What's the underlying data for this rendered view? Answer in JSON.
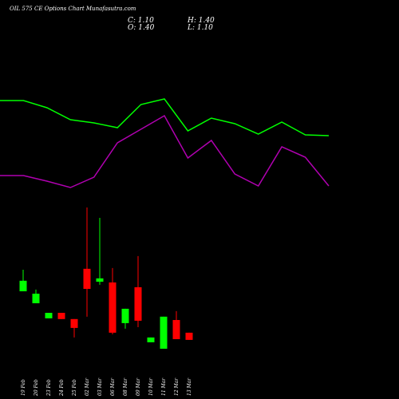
{
  "chart_data": [
    {
      "type": "line",
      "ylim": [
        0,
        500
      ],
      "series": [
        {
          "color": "#00ff00",
          "values": [
            374,
            374,
            365,
            350,
            346,
            340,
            369,
            376,
            336,
            352,
            345,
            332,
            347,
            331,
            330
          ]
        },
        {
          "color": "#b000b0",
          "values": [
            280,
            280,
            273,
            265,
            278,
            321,
            338,
            355,
            302,
            324,
            282,
            267,
            316,
            303,
            267
          ]
        }
      ]
    },
    {
      "type": "candlestick",
      "title": "OIL 575 CE Options Chart Munafasutra.com",
      "ohlc_labels": [
        "C: 1.10",
        "O: 1.40",
        "H: 1.40",
        "L: 1.10"
      ],
      "categories": [
        "19 Feb",
        "20 Feb",
        "23 Feb",
        "24 Feb",
        "25 Feb",
        "02 Mar",
        "03 Mar",
        "06 Mar",
        "08 Mar",
        "09 Mar",
        "10 Mar",
        "11 Mar",
        "12 Mar",
        "13 Mar"
      ],
      "open": [
        3.13,
        2.63,
        2.0,
        2.23,
        1.97,
        4.07,
        3.53,
        3.5,
        1.8,
        3.3,
        1.0,
        0.73,
        1.93,
        1.4
      ],
      "high": [
        4.03,
        3.2,
        2.23,
        2.23,
        1.97,
        6.63,
        6.2,
        4.1,
        2.4,
        4.6,
        1.2,
        2.07,
        2.3,
        1.4
      ],
      "low": [
        3.13,
        2.63,
        2.0,
        1.97,
        1.2,
        2.07,
        3.4,
        1.33,
        1.57,
        1.63,
        1.0,
        0.73,
        1.13,
        1.1
      ],
      "close": [
        3.57,
        3.03,
        2.23,
        1.97,
        1.6,
        3.23,
        3.67,
        1.4,
        2.4,
        1.9,
        1.2,
        2.07,
        1.13,
        1.1
      ],
      "up_color": "#00ff00",
      "down_color": "#ff0000",
      "ylim": [
        -1.37,
        15.3
      ]
    }
  ]
}
